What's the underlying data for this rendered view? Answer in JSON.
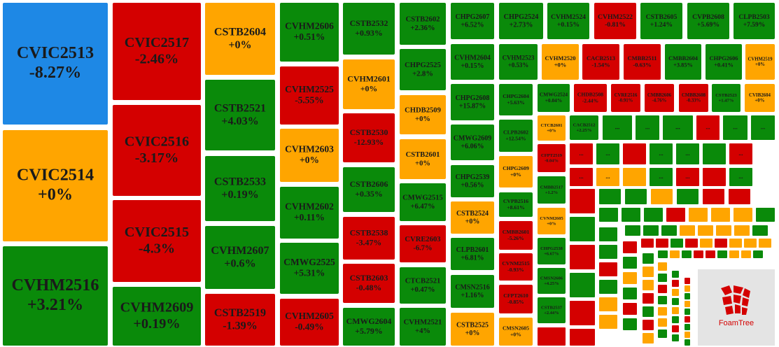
{
  "treemap": {
    "colors": {
      "down": "#d40000",
      "flat": "#ffa500",
      "up": "#0a8a0a",
      "selected": "#1e88e5"
    },
    "selected_index": 0,
    "more_label": "...",
    "brand": "FoamTree",
    "tiles": [
      {
        "label": "CVIC2513",
        "change": "-8.27%"
      },
      {
        "label": "CVIC2514",
        "change": "+0%"
      },
      {
        "label": "CVHM2516",
        "change": "+3.21%"
      },
      {
        "label": "CVIC2517",
        "change": "-2.46%"
      },
      {
        "label": "CVIC2516",
        "change": "-3.17%"
      },
      {
        "label": "CVIC2515",
        "change": "-4.3%"
      },
      {
        "label": "CVHM2609",
        "change": "+0.19%"
      },
      {
        "label": "CSTB2604",
        "change": "+0%"
      },
      {
        "label": "CSTB2521",
        "change": "+4.03%"
      },
      {
        "label": "CSTB2533",
        "change": "+0.19%"
      },
      {
        "label": "CVHM2607",
        "change": "+0.6%"
      },
      {
        "label": "CSTB2519",
        "change": "-1.39%"
      },
      {
        "label": "CVHM2606",
        "change": "+0.51%"
      },
      {
        "label": "CVHM2525",
        "change": "-5.55%"
      },
      {
        "label": "CVHM2603",
        "change": "+0%"
      },
      {
        "label": "CVHM2602",
        "change": "+0.11%"
      },
      {
        "label": "CMWG2525",
        "change": "+5.31%"
      },
      {
        "label": "CVHM2605",
        "change": "-0.49%"
      },
      {
        "label": "CSTB2532",
        "change": "+0.93%"
      },
      {
        "label": "CVHM2601",
        "change": "+0%"
      },
      {
        "label": "CSTB2530",
        "change": "-12.93%"
      },
      {
        "label": "CSTB2606",
        "change": "+0.35%"
      },
      {
        "label": "CSTB2538",
        "change": "-3.47%"
      },
      {
        "label": "CSTB2603",
        "change": "-0.48%"
      },
      {
        "label": "CMWG2604",
        "change": "+5.79%"
      },
      {
        "label": "CSTB2602",
        "change": "+2.36%"
      },
      {
        "label": "CHPG2525",
        "change": "+2.8%"
      },
      {
        "label": "CHDB2509",
        "change": "+0%"
      },
      {
        "label": "CSTB2601",
        "change": "+0%"
      },
      {
        "label": "CMWG2515",
        "change": "+6.47%"
      },
      {
        "label": "CVRE2603",
        "change": "-6.7%"
      },
      {
        "label": "CTCB2521",
        "change": "+0.47%"
      },
      {
        "label": "CVHM2521",
        "change": "+4%"
      },
      {
        "label": "CHPG2607",
        "change": "+6.52%"
      },
      {
        "label": "CVHM2604",
        "change": "+0.15%"
      },
      {
        "label": "CHPG2608",
        "change": "+15.87%"
      },
      {
        "label": "CMWG2609",
        "change": "+6.06%"
      },
      {
        "label": "CHPG2539",
        "change": "+0.56%"
      },
      {
        "label": "CSTB2524",
        "change": "+0%"
      },
      {
        "label": "CLPB2601",
        "change": "+6.81%"
      },
      {
        "label": "CMSN2516",
        "change": "+1.16%"
      },
      {
        "label": "CSTB2525",
        "change": "+0%"
      },
      {
        "label": "CHPG2524",
        "change": "+2.73%"
      },
      {
        "label": "CVHM2524",
        "change": "+0.15%"
      },
      {
        "label": "CVHM2522",
        "change": "-0.81%"
      },
      {
        "label": "CSTB2605",
        "change": "+1.24%"
      },
      {
        "label": "CVPB2608",
        "change": "+5.69%"
      },
      {
        "label": "CLPB2503",
        "change": "+7.59%"
      },
      {
        "label": "CVHM2523",
        "change": "+0.53%"
      },
      {
        "label": "CVHM2520",
        "change": "+0%"
      },
      {
        "label": "CACB2513",
        "change": "-1.54%"
      },
      {
        "label": "CMBB2511",
        "change": "-0.63%"
      },
      {
        "label": "CMBB2604",
        "change": "+3.85%"
      },
      {
        "label": "CHPG2606",
        "change": "+0.41%"
      },
      {
        "label": "CVHM2519",
        "change": "+0%"
      },
      {
        "label": "CHPG2604",
        "change": "+5.63%"
      },
      {
        "label": "CLPB2602",
        "change": "+12.54%"
      },
      {
        "label": "CHPG2609",
        "change": "+0%"
      },
      {
        "label": "CVPB2516",
        "change": "+8.61%"
      },
      {
        "label": "CMBB2601",
        "change": "-5.26%"
      },
      {
        "label": "CVNM2515",
        "change": "-0.93%"
      },
      {
        "label": "CFPT2610",
        "change": "-0.85%"
      },
      {
        "label": "CMSN2605",
        "change": "+0%"
      },
      {
        "label": "CMWG2524",
        "change": "+0.04%"
      },
      {
        "label": "CHDB2508",
        "change": "-2.44%"
      },
      {
        "label": "CVRE2516",
        "change": "-0.91%"
      },
      {
        "label": "CMBB2606",
        "change": "-4.76%"
      },
      {
        "label": "CMBB2608",
        "change": "-0.33%"
      },
      {
        "label": "CSTB2523",
        "change": "+1.47%"
      },
      {
        "label": "CVIB2604",
        "change": "+0%"
      },
      {
        "label": "CTCB2601",
        "change": "+0%"
      },
      {
        "label": "CFPT2519",
        "change": "-0.04%"
      },
      {
        "label": "CMBB2517",
        "change": "+1.2%"
      },
      {
        "label": "CVNM2605",
        "change": "+0%"
      },
      {
        "label": "CHPG2538",
        "change": "+6.67%"
      },
      {
        "label": "CMSN2606",
        "change": "+4.25%"
      },
      {
        "label": "CSTB2537",
        "change": "+2.44%"
      },
      {
        "label": "CACB2512",
        "change": "+2.25%"
      }
    ]
  }
}
